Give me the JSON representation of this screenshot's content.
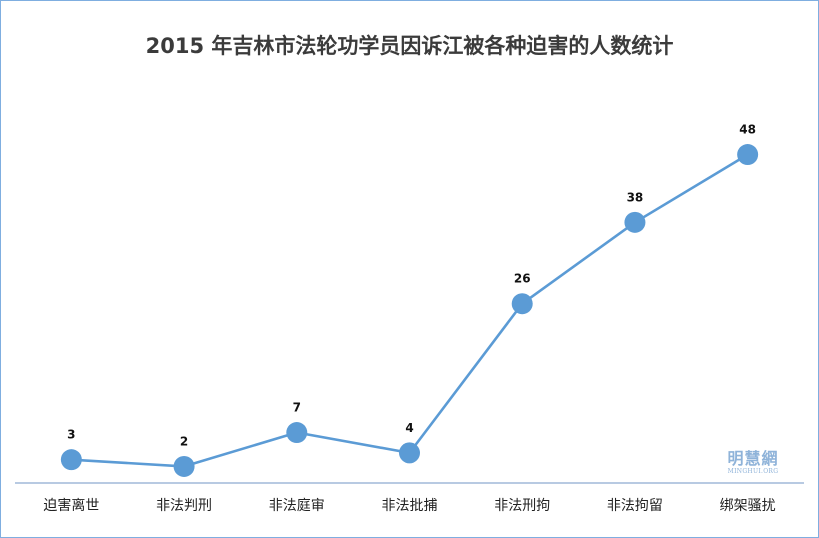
{
  "chart_data": {
    "type": "line",
    "title": "2015 年吉林市法轮功学员因诉江被各种迫害的人数统计",
    "categories": [
      "迫害离世",
      "非法判刑",
      "非法庭审",
      "非法批捕",
      "非法刑拘",
      "非法拘留",
      "绑架骚扰"
    ],
    "values": [
      3,
      2,
      7,
      4,
      26,
      38,
      48
    ],
    "data_labels": [
      "3",
      "2",
      "7",
      "4",
      "26",
      "38",
      "48"
    ],
    "xlabel": "",
    "ylabel": "",
    "ylim": [
      0,
      50
    ],
    "grid": false,
    "legend": "none",
    "line_color": "#5b9bd5",
    "axis_color": "#8eaad0"
  },
  "watermark": {
    "text_cn": "明慧網",
    "text_en": "MINGHUI.ORG"
  }
}
